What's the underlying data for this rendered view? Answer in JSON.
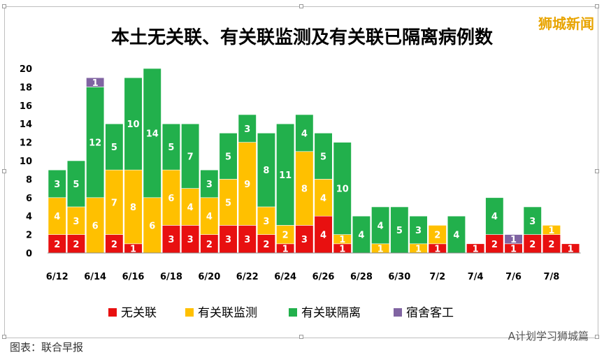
{
  "brand": "狮城新闻",
  "caption": "图表：联合早报",
  "footer_credit": "A计划学习狮城篇",
  "chart_data": {
    "type": "bar",
    "stacked": true,
    "title": "本土无关联、有关联监测及有关联已隔离病例数",
    "categories": [
      "6/12",
      "6/13",
      "6/14",
      "6/15",
      "6/16",
      "6/17",
      "6/18",
      "6/19",
      "6/20",
      "6/21",
      "6/22",
      "6/23",
      "6/24",
      "6/25",
      "6/26",
      "6/27",
      "6/28",
      "6/29",
      "6/30",
      "7/1",
      "7/2",
      "7/3",
      "7/4",
      "7/5",
      "7/6",
      "7/7",
      "7/8",
      "7/9"
    ],
    "tick_labels": [
      "6/12",
      "6/14",
      "6/16",
      "6/18",
      "6/20",
      "6/22",
      "6/24",
      "6/26",
      "6/28",
      "6/30",
      "7/2",
      "7/4",
      "7/6",
      "7/8"
    ],
    "ylim": [
      0,
      20
    ],
    "yticks": [
      0,
      2,
      4,
      6,
      8,
      10,
      12,
      14,
      16,
      18,
      20
    ],
    "grid": false,
    "legend_position": "bottom",
    "series": [
      {
        "name": "无关联",
        "color": "#e81010",
        "values": [
          2,
          2,
          0,
          2,
          1,
          0,
          3,
          3,
          2,
          3,
          3,
          2,
          1,
          3,
          4,
          1,
          0,
          0,
          0,
          0,
          1,
          0,
          1,
          2,
          1,
          2,
          2,
          1
        ]
      },
      {
        "name": "有关联监测",
        "color": "#ffc000",
        "values": [
          4,
          3,
          6,
          7,
          8,
          6,
          6,
          4,
          4,
          5,
          9,
          3,
          2,
          8,
          4,
          1,
          0,
          1,
          0,
          1,
          2,
          0,
          0,
          0,
          0,
          0,
          1,
          0
        ]
      },
      {
        "name": "有关联隔离",
        "color": "#22b04c",
        "values": [
          3,
          5,
          12,
          5,
          10,
          14,
          5,
          7,
          3,
          5,
          3,
          8,
          11,
          4,
          5,
          10,
          4,
          4,
          5,
          3,
          0,
          4,
          0,
          4,
          0,
          3,
          0,
          0
        ]
      },
      {
        "name": "宿舍客工",
        "color": "#8064a2",
        "values": [
          0,
          0,
          1,
          0,
          0,
          0,
          0,
          0,
          0,
          0,
          0,
          0,
          0,
          0,
          0,
          0,
          0,
          0,
          0,
          0,
          0,
          0,
          0,
          0,
          1,
          0,
          0,
          0
        ]
      }
    ]
  }
}
